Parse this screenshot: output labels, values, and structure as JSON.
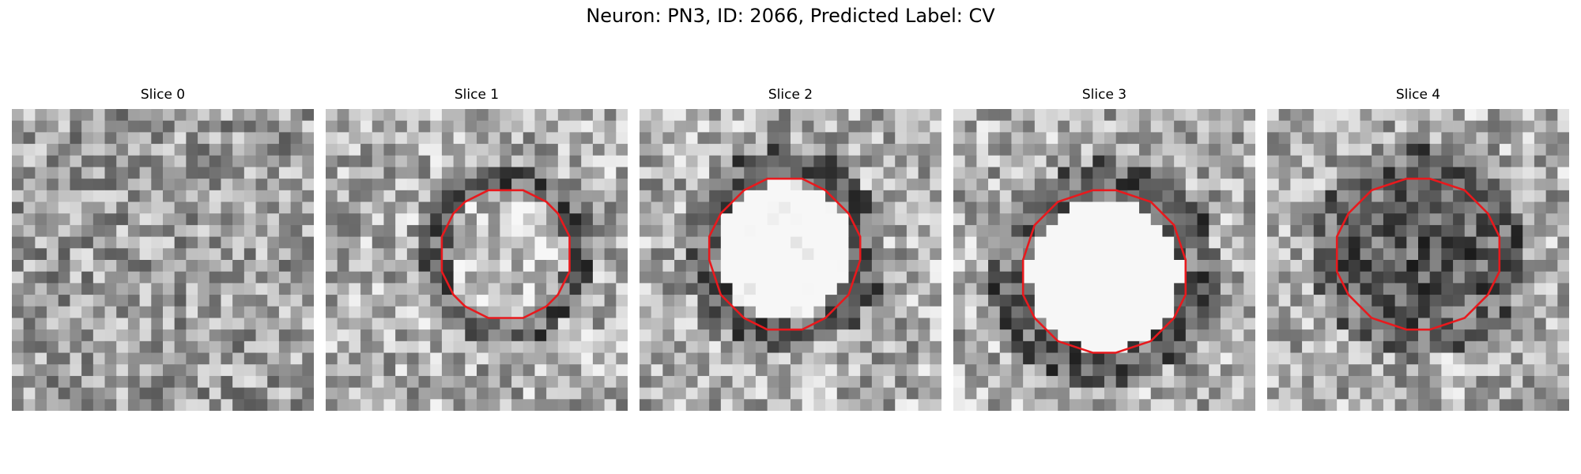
{
  "figure": {
    "title": "Neuron: PN3, ID: 2066, Predicted Label: CV"
  },
  "chart_data": {
    "type": "heatmap",
    "colormap": "grayscale",
    "grid_size": 26,
    "contour_color": "#e8191d",
    "panels": [
      {
        "title": "Slice 0",
        "contour": false
      },
      {
        "title": "Slice 1",
        "contour": true,
        "contour_center": [
          0.6,
          0.48
        ],
        "contour_radius": 0.22,
        "center_brightness": 0.15
      },
      {
        "title": "Slice 2",
        "contour": true,
        "contour_center": [
          0.48,
          0.47
        ],
        "contour_radius": 0.25,
        "center_brightness": 0.55
      },
      {
        "title": "Slice 3",
        "contour": true,
        "contour_center": [
          0.5,
          0.55
        ],
        "contour_radius": 0.28,
        "center_brightness": 0.7
      },
      {
        "title": "Slice 4",
        "contour": true,
        "contour_center": [
          0.5,
          0.48
        ],
        "contour_radius": 0.26,
        "center_brightness": -0.25
      }
    ]
  }
}
